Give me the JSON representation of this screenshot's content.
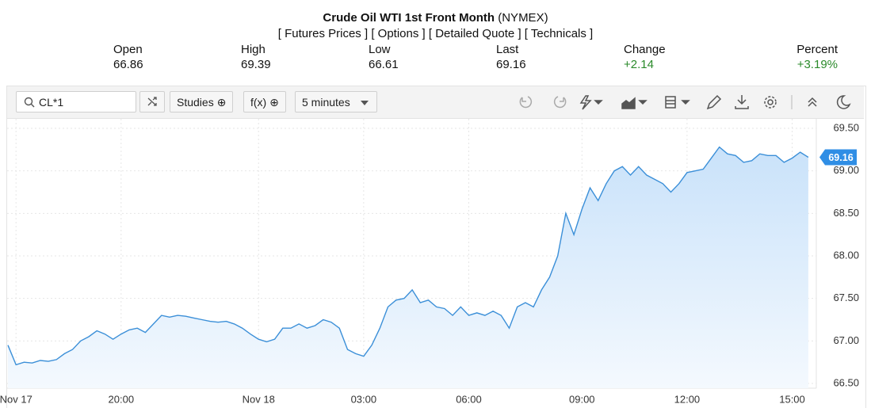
{
  "header": {
    "title": "Crude Oil WTI 1st Front Month",
    "exchange": "(NYMEX)",
    "links": [
      "[ Futures Prices ]",
      "[ Options ]",
      "[ Detailed Quote ]",
      "[ Technicals ]"
    ],
    "stats": [
      {
        "label": "Open",
        "value": "66.86"
      },
      {
        "label": "High",
        "value": "69.39"
      },
      {
        "label": "Low",
        "value": "66.61"
      },
      {
        "label": "Last",
        "value": "69.16"
      },
      {
        "label": "Change",
        "value": "+2.14"
      },
      {
        "label": "Percent",
        "value": "+3.19%"
      }
    ]
  },
  "toolbar": {
    "symbol": "CL*1",
    "studies": "Studies",
    "fx": "f(x)",
    "interval": "5 minutes"
  },
  "chart_data": {
    "type": "area",
    "color": "#3b8fd8",
    "grid": true,
    "values": [
      66.95,
      66.72,
      66.75,
      66.74,
      66.77,
      66.76,
      66.78,
      66.85,
      66.9,
      67.0,
      67.05,
      67.12,
      67.08,
      67.02,
      67.08,
      67.13,
      67.15,
      67.1,
      67.2,
      67.3,
      67.28,
      67.3,
      67.29,
      67.27,
      67.25,
      67.23,
      67.22,
      67.23,
      67.2,
      67.15,
      67.08,
      67.02,
      66.99,
      67.02,
      67.15,
      67.15,
      67.2,
      67.15,
      67.18,
      67.25,
      67.22,
      67.15,
      66.9,
      66.85,
      66.82,
      66.95,
      67.15,
      67.4,
      67.48,
      67.5,
      67.6,
      67.45,
      67.48,
      67.4,
      67.38,
      67.3,
      67.4,
      67.3,
      67.33,
      67.3,
      67.35,
      67.3,
      67.15,
      67.4,
      67.45,
      67.4,
      67.6,
      67.75,
      68.0,
      68.5,
      68.25,
      68.55,
      68.8,
      68.65,
      68.85,
      69.0,
      69.05,
      68.95,
      69.05,
      68.95,
      68.9,
      68.85,
      68.75,
      68.85,
      68.98,
      69.0,
      69.02,
      69.15,
      69.28,
      69.2,
      69.18,
      69.1,
      69.12,
      69.2,
      69.18,
      69.18,
      69.1,
      69.15,
      69.22,
      69.16
    ],
    "xlim": [
      0,
      99.4
    ],
    "xticks": [
      {
        "value": 1,
        "label": "Nov 17"
      },
      {
        "value": 14,
        "label": "20:00"
      },
      {
        "value": 31,
        "label": "Nov 18"
      },
      {
        "value": 44,
        "label": "03:00"
      },
      {
        "value": 57,
        "label": "06:00"
      },
      {
        "value": 71,
        "label": "09:00"
      },
      {
        "value": 84,
        "label": "12:00"
      },
      {
        "value": 97,
        "label": "15:00"
      }
    ],
    "ylim": [
      66.5,
      69.5
    ],
    "yticks": [
      {
        "value": 66.5,
        "label": "66.50"
      },
      {
        "value": 67,
        "label": "67.00"
      },
      {
        "value": 67.5,
        "label": "67.50"
      },
      {
        "value": 68,
        "label": "68.00"
      },
      {
        "value": 68.5,
        "label": "68.50"
      },
      {
        "value": 69,
        "label": "69.00"
      },
      {
        "value": 69.5,
        "label": "69.50"
      }
    ],
    "last_price": 69.16
  }
}
